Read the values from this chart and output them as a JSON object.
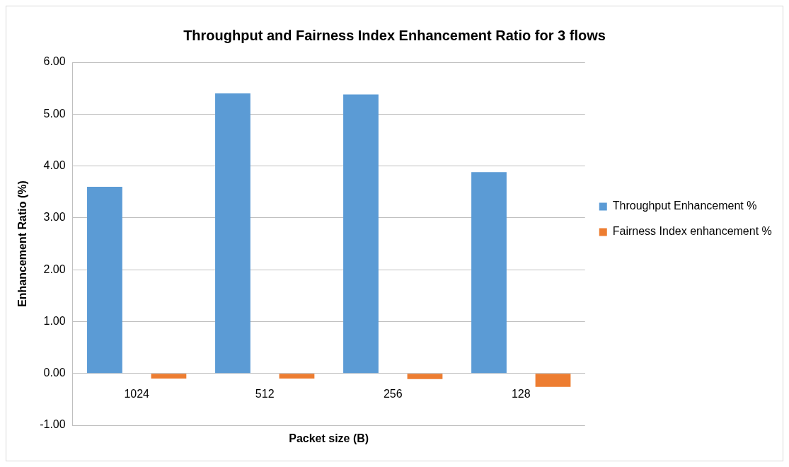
{
  "chart_data": {
    "type": "bar",
    "title": "Throughput and Fairness Index Enhancement Ratio for 3 flows",
    "xlabel": "Packet size (B)",
    "ylabel": "Enhancement Ratio (%)",
    "categories": [
      "1024",
      "512",
      "256",
      "128"
    ],
    "series": [
      {
        "name": "Throughput Enhancement %",
        "color": "#5b9bd5",
        "values": [
          3.6,
          5.4,
          5.38,
          3.88
        ]
      },
      {
        "name": "Fairness Index enhancement %",
        "color": "#ed7d31",
        "values": [
          -0.1,
          -0.1,
          -0.11,
          -0.26
        ]
      }
    ],
    "ylim": [
      -1,
      6
    ],
    "yticks": [
      {
        "value": -1,
        "label": "-1.00"
      },
      {
        "value": 0,
        "label": "0.00"
      },
      {
        "value": 1,
        "label": "1.00"
      },
      {
        "value": 2,
        "label": "2.00"
      },
      {
        "value": 3,
        "label": "3.00"
      },
      {
        "value": 4,
        "label": "4.00"
      },
      {
        "value": 5,
        "label": "5.00"
      },
      {
        "value": 6,
        "label": "6.00"
      }
    ],
    "grid": "y",
    "legend": "right"
  }
}
